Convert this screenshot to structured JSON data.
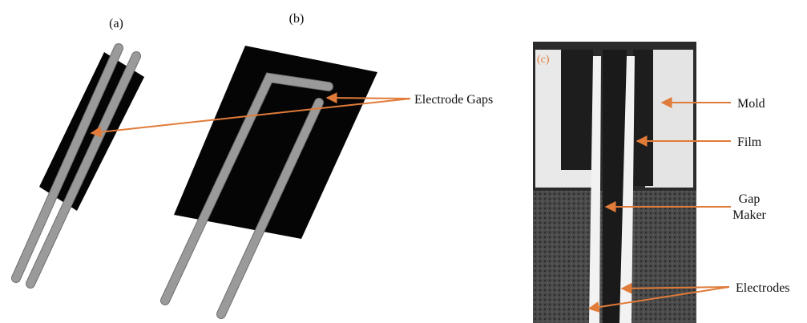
{
  "panels": {
    "a": {
      "label": "(a)"
    },
    "b": {
      "label": "(b)"
    },
    "c": {
      "label": "(c)"
    }
  },
  "annotations": {
    "electrode_gaps": "Electrode Gaps",
    "mold": "Mold",
    "film": "Film",
    "gap_maker": [
      "Gap",
      "Maker"
    ],
    "electrodes": "Electrodes"
  }
}
